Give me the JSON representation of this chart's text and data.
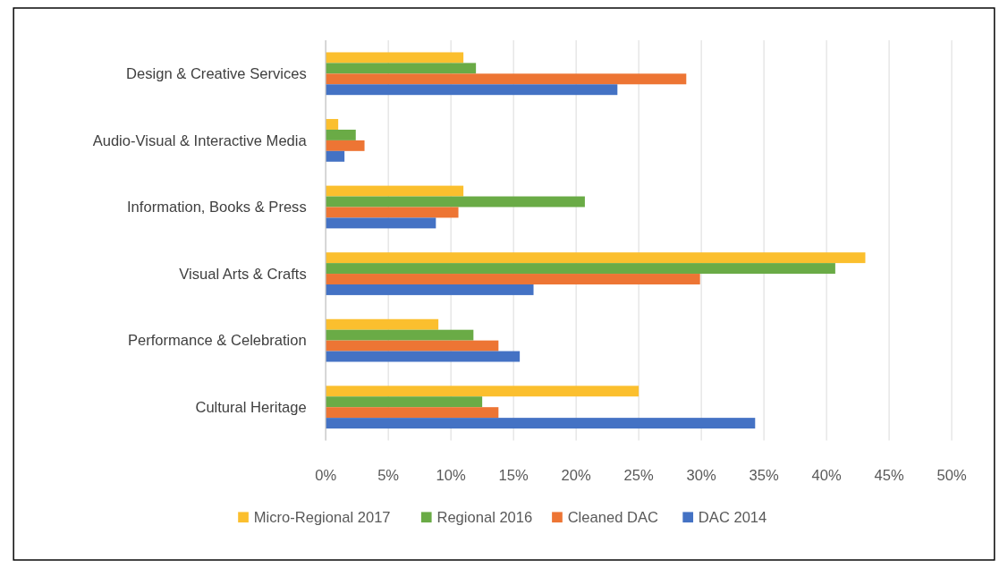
{
  "chart_data": {
    "type": "bar",
    "orientation": "horizontal",
    "categories": [
      "Design & Creative Services",
      "Audio-Visual & Interactive Media",
      "Information, Books & Press",
      "Visual Arts & Crafts",
      "Performance & Celebration",
      "Cultural Heritage"
    ],
    "series": [
      {
        "name": "Micro-Regional 2017",
        "color": "#fbbf2e",
        "values": [
          11.0,
          1.0,
          11.0,
          43.1,
          9.0,
          25.0
        ]
      },
      {
        "name": "Regional 2016",
        "color": "#6aab46",
        "values": [
          12.0,
          2.4,
          20.7,
          40.7,
          11.8,
          12.5
        ]
      },
      {
        "name": "Cleaned DAC",
        "color": "#ed7534",
        "values": [
          28.8,
          3.1,
          10.6,
          29.9,
          13.8,
          13.8
        ]
      },
      {
        "name": "DAC 2014",
        "color": "#4472c4",
        "values": [
          23.3,
          1.5,
          8.8,
          16.6,
          15.5,
          34.3
        ]
      }
    ],
    "xlim": [
      0,
      50
    ],
    "xticks": [
      {
        "value": 0,
        "label": "0%"
      },
      {
        "value": 5,
        "label": "5%"
      },
      {
        "value": 10,
        "label": "10%"
      },
      {
        "value": 15,
        "label": "15%"
      },
      {
        "value": 20,
        "label": "20%"
      },
      {
        "value": 25,
        "label": "25%"
      },
      {
        "value": 30,
        "label": "30%"
      },
      {
        "value": 35,
        "label": "35%"
      },
      {
        "value": 40,
        "label": "40%"
      },
      {
        "value": 45,
        "label": "45%"
      },
      {
        "value": 50,
        "label": "50%"
      }
    ],
    "grid": "x",
    "legend": "bottom"
  }
}
